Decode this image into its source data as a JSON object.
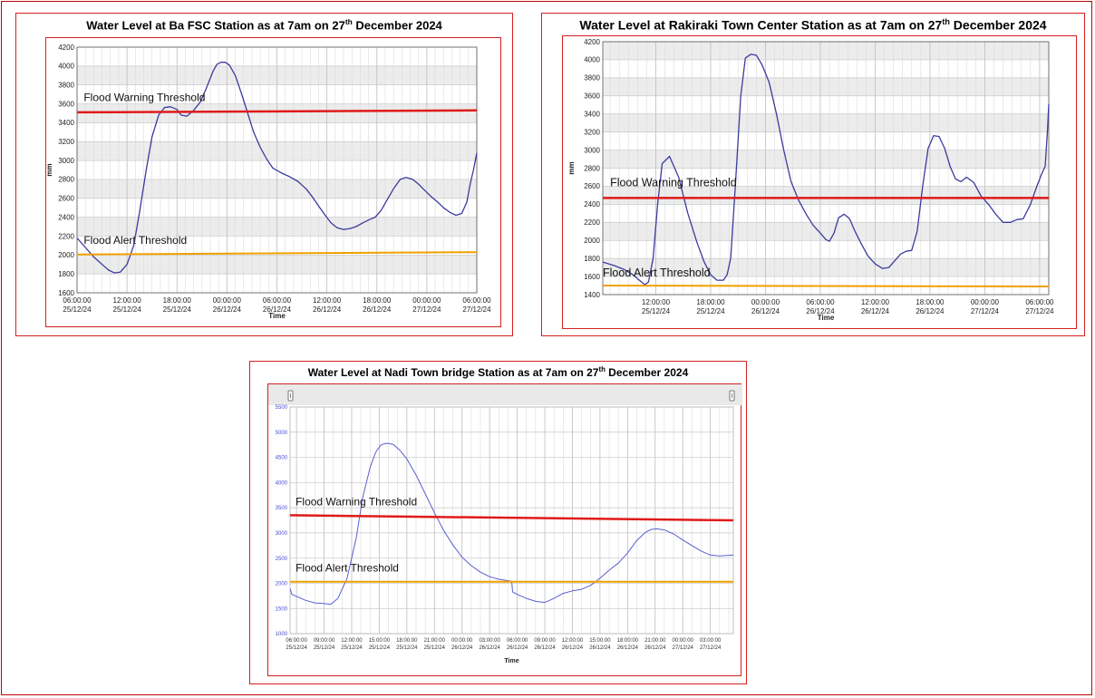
{
  "chart_data": [
    {
      "id": "ba",
      "type": "line",
      "title_prefix": "Water Level at Ba FSC Station as at 7am on 27",
      "title_sup": "th",
      "title_suffix": " December 2024",
      "xlabel": "Time",
      "ylabel": "mm",
      "ylim": [
        1600,
        4200
      ],
      "yticks": [
        1600,
        1800,
        2000,
        2200,
        2400,
        2600,
        2800,
        3000,
        3200,
        3400,
        3600,
        3800,
        4000,
        4200
      ],
      "xlim": [
        0,
        48
      ],
      "xticks": [
        {
          "x": 0,
          "time": "06:00:00",
          "date": "25/12/24"
        },
        {
          "x": 6,
          "time": "12:00:00",
          "date": "25/12/24"
        },
        {
          "x": 12,
          "time": "18:00:00",
          "date": "25/12/24"
        },
        {
          "x": 18,
          "time": "00:00:00",
          "date": "26/12/24"
        },
        {
          "x": 24,
          "time": "06:00:00",
          "date": "26/12/24"
        },
        {
          "x": 30,
          "time": "12:00:00",
          "date": "26/12/24"
        },
        {
          "x": 36,
          "time": "18:00:00",
          "date": "26/12/24"
        },
        {
          "x": 42,
          "time": "00:00:00",
          "date": "27/12/24"
        },
        {
          "x": 48,
          "time": "06:00:00",
          "date": "27/12/24"
        }
      ],
      "grid": true,
      "band_shading": true,
      "series": [
        {
          "color": "#3b3b9e",
          "width": 1.3,
          "x": [
            0,
            1,
            2,
            3,
            3.8,
            4.5,
            5.2,
            6,
            6.8,
            7.5,
            8.3,
            9,
            9.8,
            10.5,
            11.2,
            12,
            12.5,
            13.2,
            14,
            14.8,
            15.5,
            16.3,
            16.8,
            17.3,
            17.8,
            18.3,
            19,
            19.7,
            20.5,
            21.2,
            22,
            22.8,
            23.5,
            24.5,
            25.5,
            26.5,
            27.5,
            28.3,
            29,
            29.8,
            30.5,
            31.2,
            32,
            32.8,
            33.5,
            34.3,
            35,
            35.8,
            36.5,
            37.2,
            38,
            38.8,
            39.5,
            40.3,
            41,
            41.8,
            42.5,
            43.3,
            44,
            44.8,
            45.5,
            46.2,
            46.8,
            47.2,
            47.6,
            48
          ],
          "y": [
            2180,
            2080,
            1980,
            1900,
            1840,
            1810,
            1820,
            1900,
            2100,
            2450,
            2900,
            3250,
            3480,
            3560,
            3570,
            3540,
            3480,
            3470,
            3530,
            3620,
            3760,
            3940,
            4020,
            4040,
            4040,
            4010,
            3900,
            3720,
            3500,
            3300,
            3140,
            3010,
            2920,
            2870,
            2830,
            2780,
            2700,
            2610,
            2520,
            2420,
            2340,
            2290,
            2270,
            2280,
            2300,
            2340,
            2370,
            2400,
            2470,
            2580,
            2700,
            2800,
            2820,
            2800,
            2750,
            2680,
            2620,
            2560,
            2500,
            2450,
            2420,
            2440,
            2560,
            2750,
            2900,
            3080
          ]
        },
        {
          "color": "#e01a1a",
          "width": 2.5,
          "x": [
            0,
            48
          ],
          "y": [
            3510,
            3530
          ]
        },
        {
          "color": "#f0a000",
          "width": 2,
          "x": [
            0,
            48
          ],
          "y": [
            2005,
            2030
          ]
        }
      ],
      "annotations": [
        {
          "text": "Flood Warning Threshold",
          "x": 0.8,
          "y": 3630
        },
        {
          "text": "Flood Alert Threshold",
          "x": 0.8,
          "y": 2120
        }
      ]
    },
    {
      "id": "rakiraki",
      "type": "line",
      "title_prefix": "Water Level at  Rakiraki Town Center Station as at 7am on 27",
      "title_sup": "th",
      "title_suffix": " December 2024",
      "xlabel": "Time",
      "ylabel": "mm",
      "ylim": [
        1400,
        4200
      ],
      "yticks": [
        1400,
        1600,
        1800,
        2000,
        2200,
        2400,
        2600,
        2800,
        3000,
        3200,
        3400,
        3600,
        3800,
        4000,
        4200
      ],
      "xlim": [
        -5.8,
        43
      ],
      "xticks": [
        {
          "x": 0,
          "time": "12:00:00",
          "date": "25/12/24"
        },
        {
          "x": 6,
          "time": "18:00:00",
          "date": "25/12/24"
        },
        {
          "x": 12,
          "time": "00:00:00",
          "date": "26/12/24"
        },
        {
          "x": 18,
          "time": "06:00:00",
          "date": "26/12/24"
        },
        {
          "x": 24,
          "time": "12:00:00",
          "date": "26/12/24"
        },
        {
          "x": 30,
          "time": "18:00:00",
          "date": "26/12/24"
        },
        {
          "x": 36,
          "time": "00:00:00",
          "date": "27/12/24"
        },
        {
          "x": 42,
          "time": "06:00:00",
          "date": "27/12/24"
        }
      ],
      "grid": true,
      "band_shading": true,
      "series": [
        {
          "color": "#3b3b9e",
          "width": 1.3,
          "x": [
            -5.8,
            -4.5,
            -3.5,
            -2.5,
            -1.8,
            -1.2,
            -0.8,
            -0.3,
            0.2,
            0.7,
            1.5,
            2.5,
            3.5,
            4.5,
            5.3,
            6,
            6.7,
            7.4,
            7.8,
            8.2,
            8.7,
            9.3,
            9.8,
            10.4,
            11,
            11.6,
            12.4,
            13.2,
            14,
            14.8,
            15.6,
            16.4,
            17.2,
            18,
            18.6,
            19,
            19.5,
            20,
            20.6,
            21.2,
            21.8,
            22.5,
            23.2,
            24,
            24.8,
            25.5,
            26.2,
            26.8,
            27.4,
            28,
            28.6,
            29.2,
            29.8,
            30.4,
            31,
            31.6,
            32.2,
            32.8,
            33.4,
            34,
            34.8,
            35.6,
            36.4,
            37.2,
            38,
            38.8,
            39.5,
            40.2,
            41,
            41.7,
            42.2,
            42.6,
            42.85,
            43
          ],
          "y": [
            1760,
            1720,
            1680,
            1620,
            1560,
            1510,
            1540,
            1800,
            2400,
            2850,
            2930,
            2700,
            2300,
            1980,
            1760,
            1620,
            1560,
            1560,
            1620,
            1800,
            2600,
            3600,
            4020,
            4060,
            4050,
            3950,
            3750,
            3400,
            3000,
            2650,
            2450,
            2300,
            2170,
            2080,
            2010,
            1990,
            2080,
            2250,
            2290,
            2240,
            2100,
            1960,
            1830,
            1740,
            1690,
            1700,
            1780,
            1850,
            1880,
            1890,
            2100,
            2600,
            3020,
            3160,
            3150,
            3020,
            2820,
            2680,
            2650,
            2700,
            2640,
            2490,
            2400,
            2290,
            2200,
            2200,
            2230,
            2240,
            2400,
            2600,
            2730,
            2820,
            3200,
            3510
          ]
        },
        {
          "color": "#e01a1a",
          "width": 2.5,
          "x": [
            -5.8,
            43
          ],
          "y": [
            2470,
            2470
          ]
        },
        {
          "color": "#f0a000",
          "width": 2,
          "x": [
            -5.8,
            43
          ],
          "y": [
            1500,
            1490
          ]
        }
      ],
      "annotations": [
        {
          "text": "Flood Warning Threshold",
          "x": -5.0,
          "y": 2600
        },
        {
          "text": "Flood Alert Threshold",
          "x": -5.8,
          "y": 1600
        }
      ]
    },
    {
      "id": "nadi",
      "type": "line",
      "title_prefix": "Water Level at Nadi Town bridge Station as at 7am on 27",
      "title_sup": "th",
      "title_suffix": " December 2024",
      "xlabel": "Time",
      "ylabel": "",
      "ylim": [
        1000,
        5500
      ],
      "yticks": [
        1000,
        1500,
        2000,
        2500,
        3000,
        3500,
        4000,
        4500,
        5000,
        5500
      ],
      "xlim": [
        -0.7,
        47.5
      ],
      "xticks": [
        {
          "x": 0,
          "time": "06:00:00",
          "date": "25/12/24"
        },
        {
          "x": 3,
          "time": "09:00:00",
          "date": "25/12/24"
        },
        {
          "x": 6,
          "time": "12:00:00",
          "date": "25/12/24"
        },
        {
          "x": 9,
          "time": "15:00:00",
          "date": "25/12/24"
        },
        {
          "x": 12,
          "time": "18:00:00",
          "date": "25/12/24"
        },
        {
          "x": 15,
          "time": "21:00:00",
          "date": "25/12/24"
        },
        {
          "x": 18,
          "time": "00:00:00",
          "date": "26/12/24"
        },
        {
          "x": 21,
          "time": "03:00:00",
          "date": "26/12/24"
        },
        {
          "x": 24,
          "time": "06:00:00",
          "date": "26/12/24"
        },
        {
          "x": 27,
          "time": "09:00:00",
          "date": "26/12/24"
        },
        {
          "x": 30,
          "time": "12:00:00",
          "date": "26/12/24"
        },
        {
          "x": 33,
          "time": "15:00:00",
          "date": "26/12/24"
        },
        {
          "x": 36,
          "time": "18:00:00",
          "date": "26/12/24"
        },
        {
          "x": 39,
          "time": "21:00:00",
          "date": "26/12/24"
        },
        {
          "x": 42,
          "time": "00:00:00",
          "date": "27/12/24"
        },
        {
          "x": 45,
          "time": "03:00:00",
          "date": "27/12/24"
        }
      ],
      "grid": true,
      "band_shading": false,
      "series": [
        {
          "color": "#5a5fd0",
          "width": 1,
          "x": [
            -0.7,
            -0.5,
            0,
            1,
            2,
            3,
            3.7,
            4.5,
            5.5,
            6.5,
            7.2,
            8,
            8.6,
            9.2,
            9.8,
            10.5,
            11.2,
            12,
            13,
            14,
            15,
            16,
            17,
            18,
            19,
            20,
            21,
            22,
            23.4,
            23.5,
            24,
            25,
            26,
            27,
            28,
            29,
            30,
            31,
            32,
            33,
            34,
            35,
            36,
            37,
            38,
            38.6,
            39.2,
            40,
            41,
            42,
            43,
            44,
            45,
            46,
            47.5
          ],
          "y": [
            1900,
            1780,
            1740,
            1660,
            1610,
            1600,
            1580,
            1700,
            2100,
            2900,
            3700,
            4300,
            4600,
            4750,
            4780,
            4760,
            4650,
            4470,
            4150,
            3780,
            3400,
            3050,
            2760,
            2520,
            2350,
            2220,
            2130,
            2080,
            2040,
            1830,
            1780,
            1700,
            1640,
            1620,
            1700,
            1800,
            1850,
            1880,
            1960,
            2100,
            2260,
            2400,
            2600,
            2850,
            3020,
            3070,
            3080,
            3060,
            2980,
            2860,
            2750,
            2640,
            2560,
            2540,
            2560
          ]
        },
        {
          "color": "#e01a1a",
          "width": 2.5,
          "x": [
            -0.7,
            47.5
          ],
          "y": [
            3350,
            3250
          ]
        },
        {
          "color": "#f0a000",
          "width": 2,
          "x": [
            -0.7,
            47.5
          ],
          "y": [
            2030,
            2030
          ]
        }
      ],
      "annotations": [
        {
          "text": "Flood Warning Threshold",
          "x": -0.1,
          "y": 3550
        },
        {
          "text": "Flood Alert Threshold",
          "x": -0.1,
          "y": 2230
        }
      ]
    }
  ]
}
